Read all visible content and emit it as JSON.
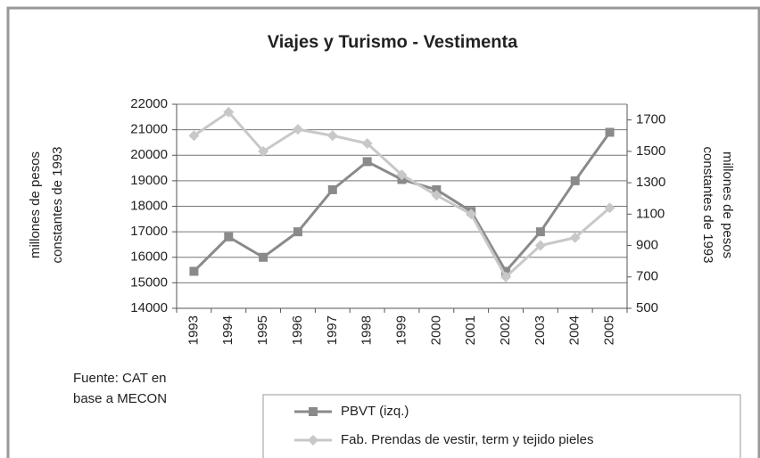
{
  "chart_data": {
    "type": "line",
    "title": "Viajes y Turismo - Vestimenta",
    "y_label": [
      "millones de pesos",
      "constantes de 1993"
    ],
    "y2_label": [
      "millones de pesos",
      "constantes de 1993"
    ],
    "source": [
      "Fuente: CAT en",
      "base a MECON"
    ],
    "categories": [
      "1993",
      "1994",
      "1995",
      "1996",
      "1997",
      "1998",
      "1999",
      "2000",
      "2001",
      "2002",
      "2003",
      "2004",
      "2005"
    ],
    "ylim": [
      14000,
      22000
    ],
    "yticks": [
      14000,
      15000,
      16000,
      17000,
      18000,
      19000,
      20000,
      21000,
      22000
    ],
    "y2lim": [
      500,
      1800
    ],
    "y2ticks": [
      500,
      700,
      900,
      1100,
      1300,
      1500,
      1700
    ],
    "grid": true,
    "series": [
      {
        "name": "PBVT (izq.)",
        "color": "#8a8a8a",
        "marker": "square",
        "values": [
          15450,
          16800,
          16000,
          17000,
          18650,
          19750,
          19050,
          18650,
          17800,
          15450,
          17000,
          19000,
          20900
        ]
      },
      {
        "name": "Fab. Prendas de vestir, term y tejido pieles",
        "color": "#c8c8c8",
        "marker": "diamond",
        "axis": "y2",
        "values": [
          1600,
          1750,
          1500,
          1640,
          1600,
          1550,
          1350,
          1220,
          1100,
          700,
          900,
          950,
          1140
        ]
      }
    ]
  }
}
